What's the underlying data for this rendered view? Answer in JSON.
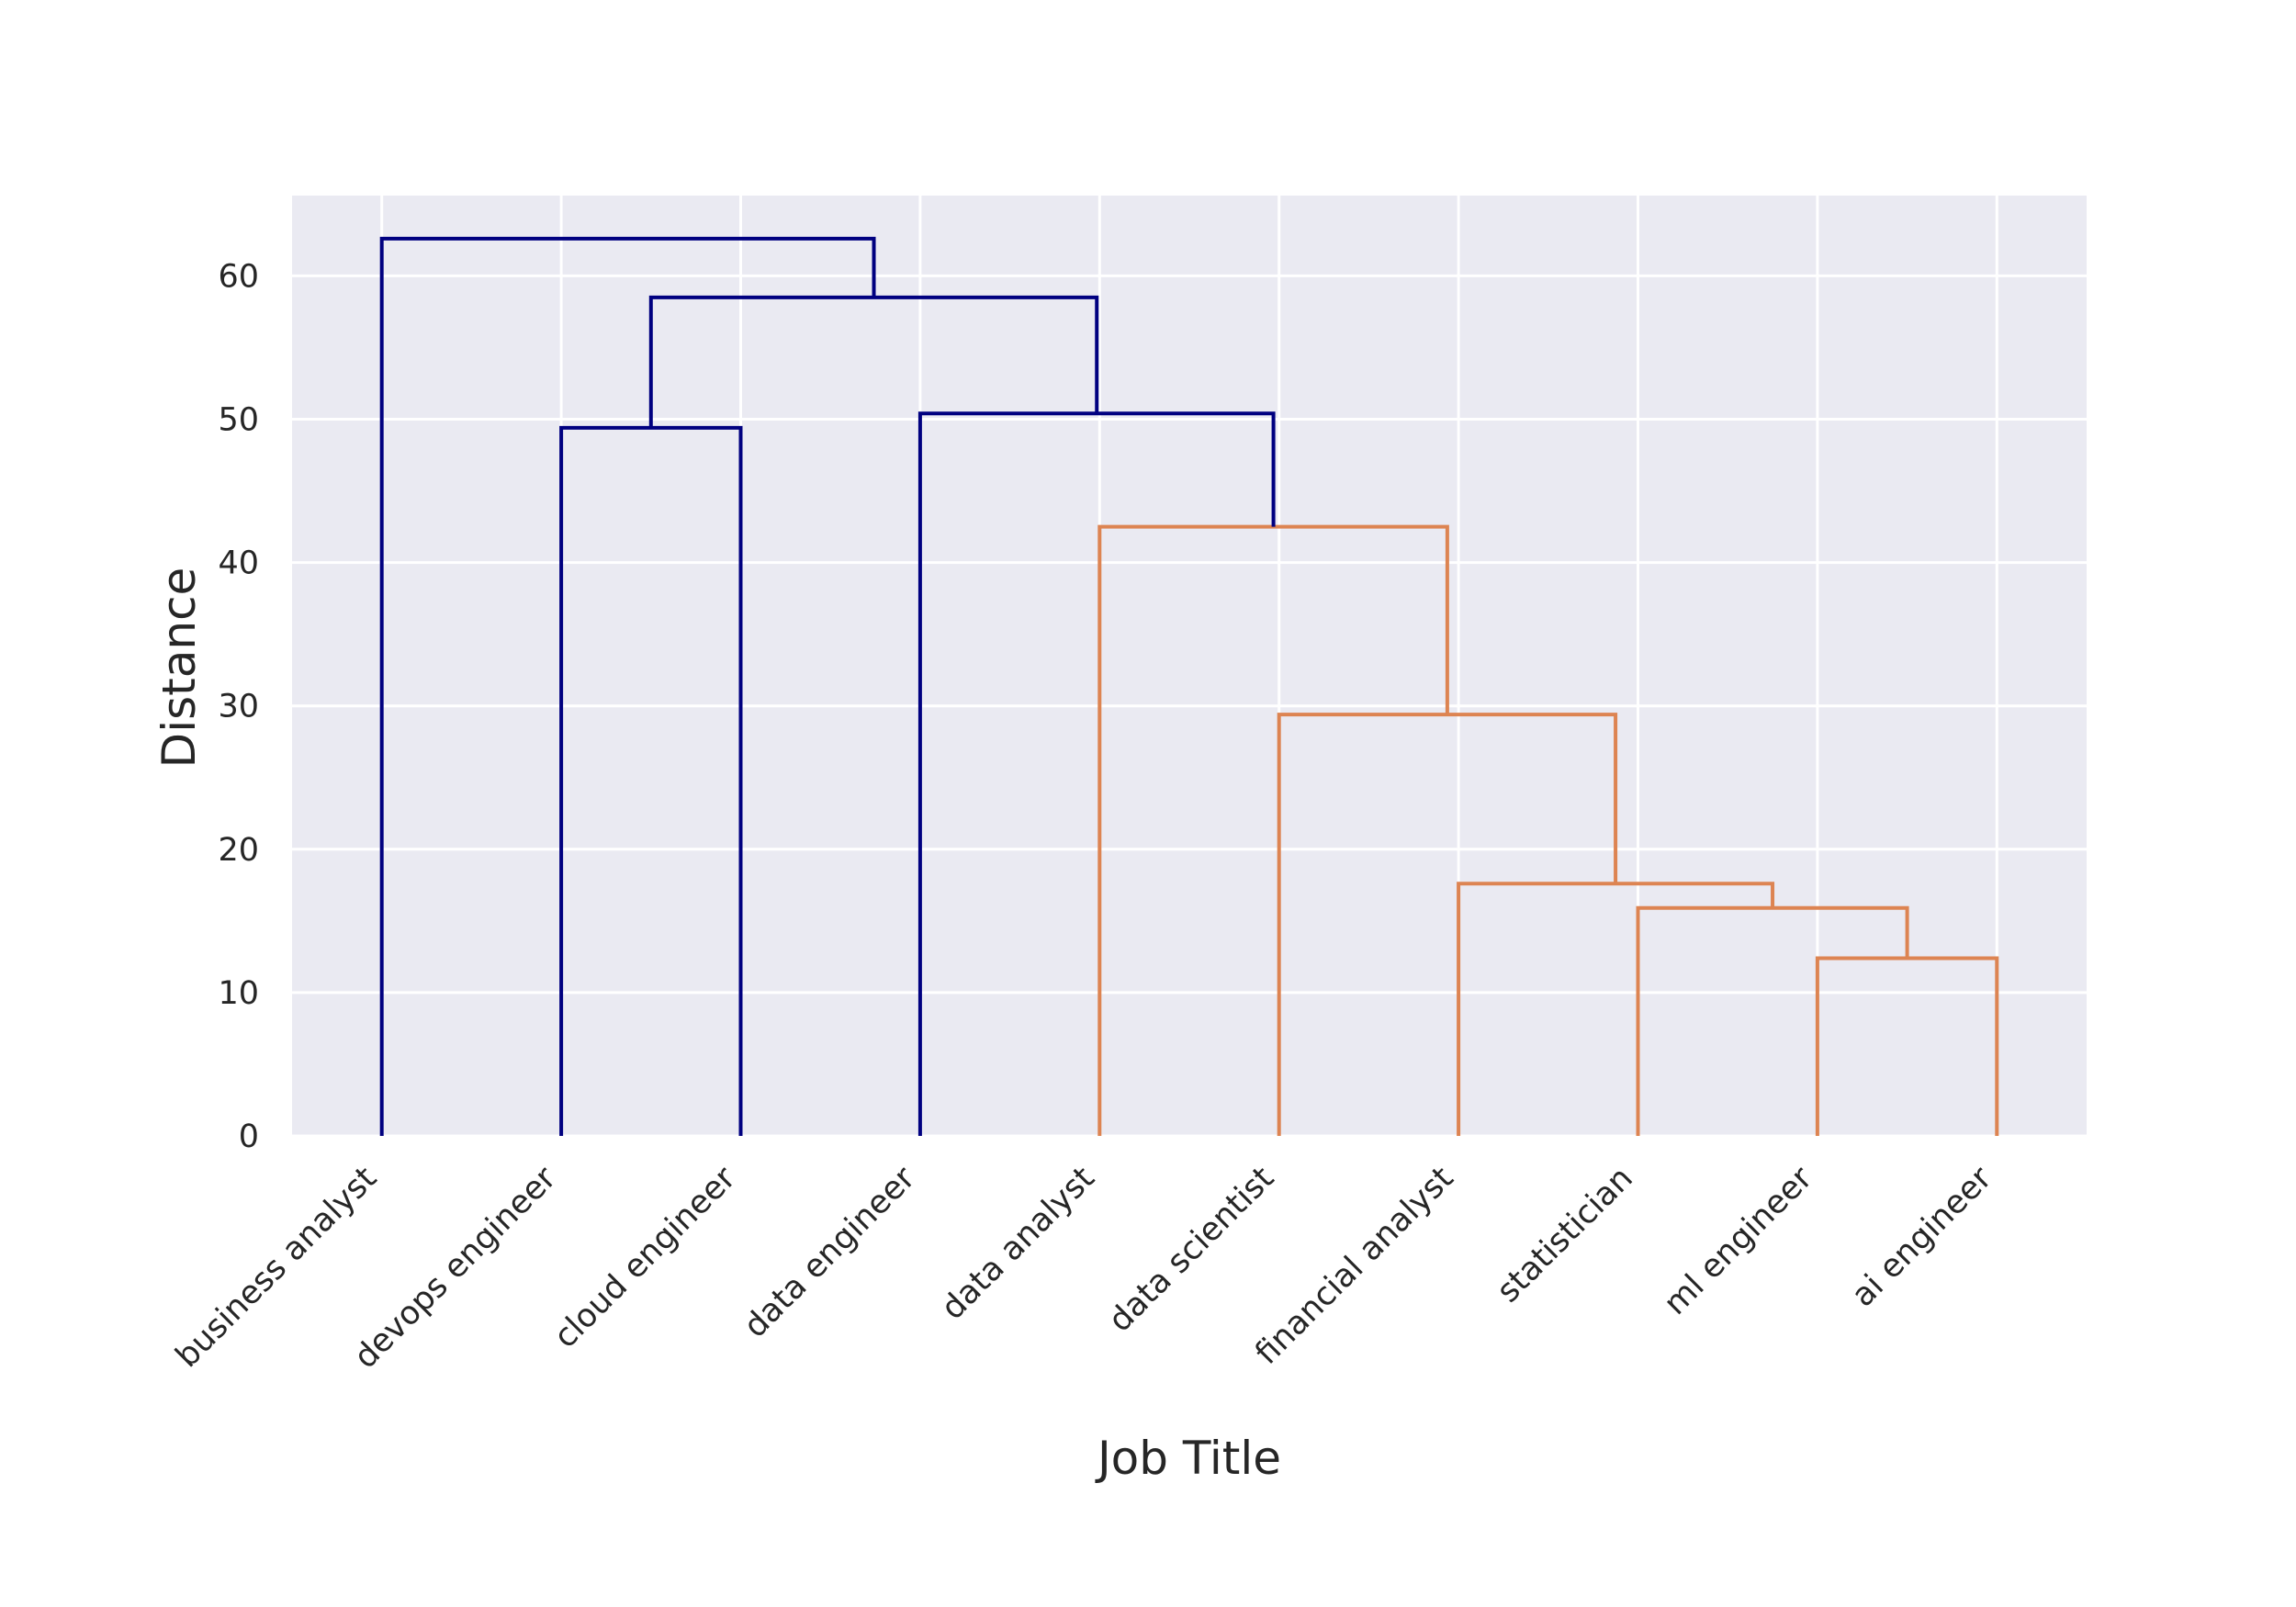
{
  "chart_data": {
    "type": "dendrogram",
    "title": "",
    "xlabel": "Job Title",
    "ylabel": "Distance",
    "ylim": [
      0,
      65.6
    ],
    "yticks": [
      0,
      10,
      20,
      30,
      40,
      50,
      60
    ],
    "grid": true,
    "leaves": [
      "business analyst",
      "devops engineer",
      "cloud engineer",
      "data engineer",
      "data analyst",
      "data scientist",
      "financial analyst",
      "statistician",
      "ml engineer",
      "ai engineer"
    ],
    "colors": {
      "background": "#ffffff",
      "plot_background": "#eaeaf2",
      "grid": "#ffffff",
      "cluster_above": "#000080",
      "cluster_orange": "#dd8452",
      "text": "#262626"
    },
    "merges": [
      {
        "id": "m1",
        "left": "ml engineer",
        "right": "ai engineer",
        "height": 12.4,
        "color": "orange"
      },
      {
        "id": "m2",
        "left": "statistician",
        "right": "m1",
        "height": 15.9,
        "color": "orange"
      },
      {
        "id": "m3",
        "left": "financial analyst",
        "right": "m2",
        "height": 17.6,
        "color": "orange"
      },
      {
        "id": "m4",
        "left": "data scientist",
        "right": "m3",
        "height": 29.4,
        "color": "orange"
      },
      {
        "id": "m5",
        "left": "data analyst",
        "right": "m4",
        "height": 42.5,
        "color": "orange"
      },
      {
        "id": "m6",
        "left": "devops engineer",
        "right": "cloud engineer",
        "height": 49.4,
        "color": "above"
      },
      {
        "id": "m7",
        "left": "data engineer",
        "right": "m5",
        "height": 50.4,
        "color": "above"
      },
      {
        "id": "m8",
        "left": "m6",
        "right": "m7",
        "height": 58.5,
        "color": "above"
      },
      {
        "id": "m9",
        "left": "business analyst",
        "right": "m8",
        "height": 62.6,
        "color": "above"
      }
    ]
  }
}
